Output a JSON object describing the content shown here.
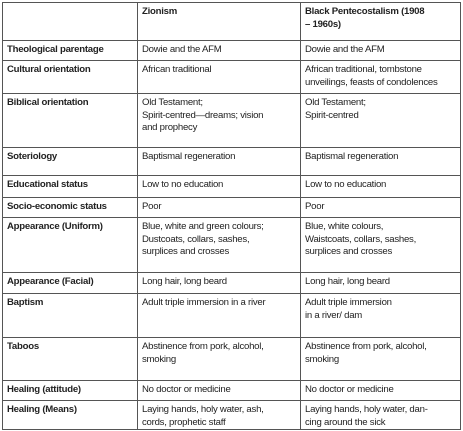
{
  "table": {
    "header": [
      [
        "Zionism"
      ],
      [
        "Black Pentecostalism (1908",
        "– 1960s)"
      ]
    ],
    "rows": [
      [
        [
          "Theological parentage"
        ],
        [
          "Dowie and the AFM"
        ],
        [
          "Dowie and the AFM"
        ]
      ],
      [
        [
          "Cultural orientation"
        ],
        [
          "African traditional"
        ],
        [
          "African traditional, tombstone",
          "unveilings, feasts of condolences"
        ]
      ],
      [
        [
          "Biblical orientation"
        ],
        [
          "Old Testament;",
          "Spirit-centred—dreams; vision",
          "and prophecy"
        ],
        [
          "Old Testament;",
          "Spirit-centred"
        ]
      ],
      [
        [
          "Soteriology"
        ],
        [
          "Baptismal regeneration"
        ],
        [
          "Baptismal regeneration"
        ]
      ],
      [
        [
          "Educational status"
        ],
        [
          "Low to no education"
        ],
        [
          "Low to no education"
        ]
      ],
      [
        [
          "Socio-economic status"
        ],
        [
          "Poor"
        ],
        [
          "Poor"
        ]
      ],
      [
        [
          "Appearance (Uniform)"
        ],
        [
          "Blue, white and green colours;",
          "Dustcoats, collars, sashes,",
          "surplices and crosses"
        ],
        [
          "Blue, white colours,",
          "Waistcoats, collars, sashes,",
          "surplices and crosses"
        ]
      ],
      [
        [
          "Appearance (Facial)"
        ],
        [
          "Long hair, long beard"
        ],
        [
          "Long hair, long beard"
        ]
      ],
      [
        [
          "Baptism"
        ],
        [
          "Adult triple immersion in a river"
        ],
        [
          "Adult triple immersion",
          "in a river/ dam"
        ]
      ],
      [
        [
          "Taboos"
        ],
        [
          "Abstinence from pork, alcohol,",
          "smoking"
        ],
        [
          "Abstinence from pork, alcohol,",
          "smoking"
        ]
      ],
      [
        [
          "Healing (attitude)"
        ],
        [
          "No doctor or medicine"
        ],
        [
          "No doctor or medicine"
        ]
      ],
      [
        [
          "Healing (Means)"
        ],
        [
          "Laying hands, holy water, ash,",
          "cords, prophetic staff"
        ],
        [
          "Laying hands, holy water, dan-",
          "cing around the sick"
        ]
      ]
    ]
  }
}
